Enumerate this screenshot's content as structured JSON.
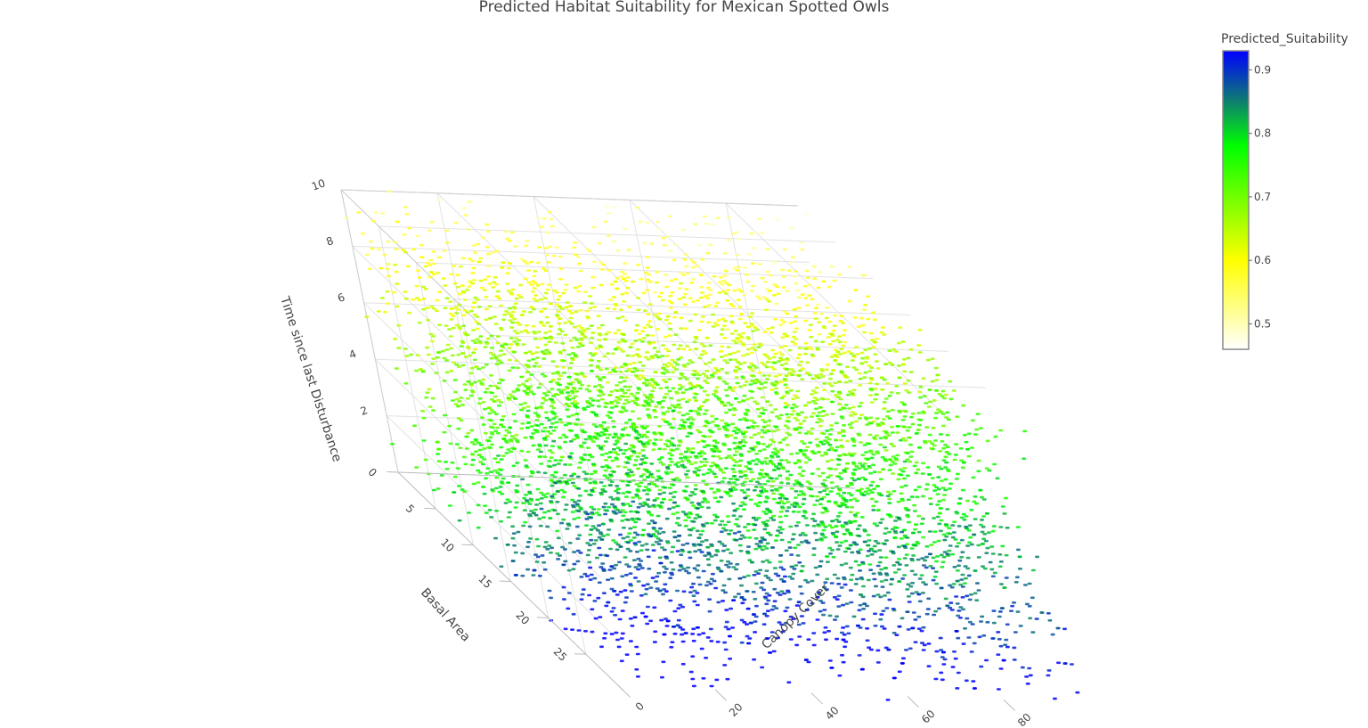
{
  "chart_data": {
    "type": "scatter3d",
    "title": "Predicted Habitat Suitability for Mexican Spotted Owls",
    "x_axis": {
      "label": "Canopy Cover",
      "range": [
        0,
        95
      ],
      "ticks": [
        0,
        20,
        40,
        60,
        80
      ]
    },
    "y_axis": {
      "label": "Basal Area",
      "range": [
        0,
        30
      ],
      "ticks": [
        0,
        5,
        10,
        15,
        20,
        25
      ]
    },
    "z_axis": {
      "label": "Time since last Disturbance",
      "range": [
        0,
        10
      ],
      "ticks": [
        2,
        4,
        6,
        8,
        10
      ]
    },
    "color_scale": {
      "title": "Predicted_Suitability",
      "range": [
        0.46,
        0.93
      ],
      "ticks": [
        0.5,
        0.6,
        0.7,
        0.8,
        0.9
      ],
      "stops": [
        {
          "value": 0.46,
          "color": "#ffffff"
        },
        {
          "value": 0.6,
          "color": "#ffff00"
        },
        {
          "value": 0.78,
          "color": "#00ff00"
        },
        {
          "value": 0.85,
          "color": "#0e7f6e"
        },
        {
          "value": 0.93,
          "color": "#0000ff"
        }
      ]
    },
    "grid": true,
    "legend": "colorbar-right",
    "trend": "Suitability is highest (about 0.9) at high basal area and low time since disturbance, and lowest (about 0.5) at high time since disturbance and low basal area."
  }
}
